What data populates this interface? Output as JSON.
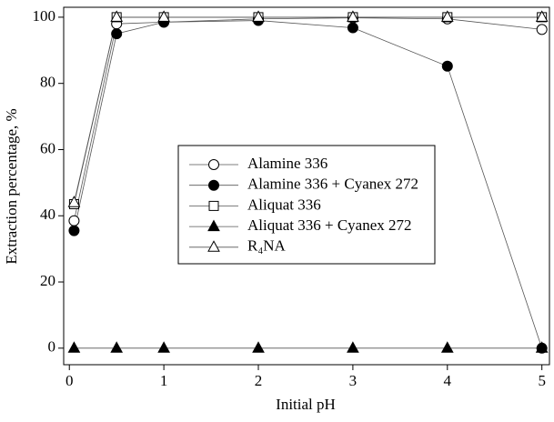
{
  "chart_data": {
    "type": "line",
    "x_label": "Initial pH",
    "y_label": "Extraction percentage, %",
    "x": [
      0.05,
      0.5,
      1,
      2,
      3,
      4,
      5
    ],
    "series": [
      {
        "name": "Alamine 336",
        "color": "#000000",
        "marker": "circle",
        "filled": false,
        "values": [
          38.5,
          98,
          98.5,
          99.5,
          99.8,
          99.5,
          96.3
        ]
      },
      {
        "name": "Alamine 336 + Cyanex 272",
        "color": "#000000",
        "marker": "circle",
        "filled": true,
        "values": [
          35.5,
          95,
          98.5,
          99,
          96.8,
          85.2,
          0
        ]
      },
      {
        "name": "Aliquat 336",
        "color": "#000000",
        "marker": "square",
        "filled": false,
        "values": [
          43.5,
          100,
          100,
          100,
          100,
          100,
          100
        ]
      },
      {
        "name": "Aliquat 336 + Cyanex 272",
        "color": "#000000",
        "marker": "triangle",
        "filled": true,
        "values": [
          0,
          0,
          0,
          0,
          0,
          0,
          0
        ]
      },
      {
        "name": "R₄NA",
        "color": "#000000",
        "marker": "triangle",
        "filled": false,
        "values": [
          44,
          100,
          100,
          100,
          100,
          100,
          100
        ]
      }
    ],
    "xlim": [
      -0.06,
      5.08
    ],
    "xticks": [
      0,
      1,
      2,
      3,
      4,
      5
    ],
    "ylim": [
      -5,
      103
    ],
    "yticks": [
      0,
      20,
      40,
      60,
      80,
      100
    ]
  }
}
